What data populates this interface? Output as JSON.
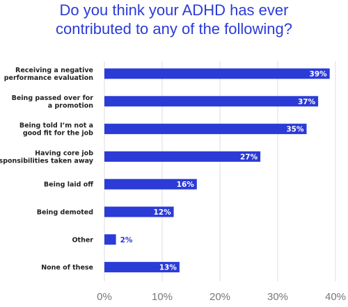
{
  "chart_data": {
    "type": "bar",
    "orientation": "horizontal",
    "title_lines": [
      "Do you think your ADHD has ever",
      "contributed to any of the following?"
    ],
    "categories": [
      [
        "Receiving a negative",
        "performance evaluation"
      ],
      [
        "Being passed over for",
        "a promotion"
      ],
      [
        "Being told I’m not a",
        "good fit for the job"
      ],
      [
        "Having core job",
        "responsibilities taken away"
      ],
      [
        "Being laid off"
      ],
      [
        "Being demoted"
      ],
      [
        "Other"
      ],
      [
        "None of these"
      ]
    ],
    "values": [
      39,
      37,
      35,
      27,
      16,
      12,
      2,
      13
    ],
    "value_labels": [
      "39%",
      "37%",
      "35%",
      "27%",
      "16%",
      "12%",
      "2%",
      "13%"
    ],
    "xlim": [
      0,
      40
    ],
    "x_ticks": [
      0,
      10,
      20,
      30,
      40
    ],
    "x_tick_labels": [
      "0%",
      "10%",
      "20%",
      "30%",
      "40%"
    ],
    "grid": true,
    "bar_color": "#2b3bd6",
    "label_inside_color": "#ffffff",
    "label_outside_color": "#2b3bd6"
  }
}
